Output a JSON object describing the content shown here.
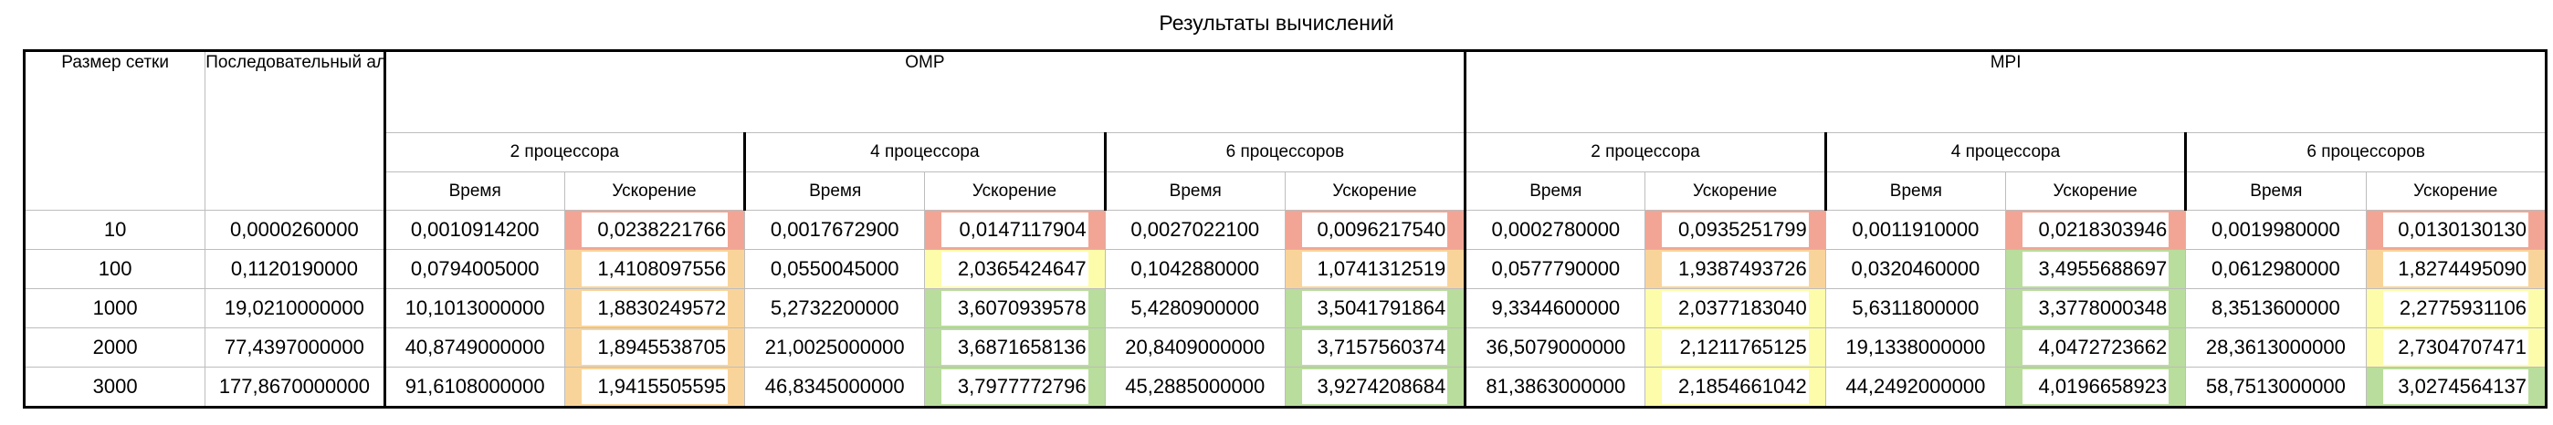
{
  "title": "Результаты вычислений",
  "headers": {
    "grid_size": "Размер сетки",
    "sequential": "Последовательный алгоритм (время, сек)",
    "omp": "OMP",
    "mpi": "MPI",
    "p2": "2 процессора",
    "p4": "4 процессора",
    "p6": "6 процессоров",
    "time": "Время",
    "speedup": "Ускорение"
  },
  "colors": {
    "red": "#f2a594",
    "orange": "#f9d49a",
    "yellow": "#fdfcaa",
    "green": "#b9dd9c"
  },
  "rows": [
    {
      "size": "10",
      "seq": "0,0000260000",
      "omp": [
        {
          "time": "0,0010914200",
          "speedup": "0,0238221766",
          "color": "red"
        },
        {
          "time": "0,0017672900",
          "speedup": "0,0147117904",
          "color": "red"
        },
        {
          "time": "0,0027022100",
          "speedup": "0,0096217540",
          "color": "red"
        }
      ],
      "mpi": [
        {
          "time": "0,0002780000",
          "speedup": "0,0935251799",
          "color": "red"
        },
        {
          "time": "0,0011910000",
          "speedup": "0,0218303946",
          "color": "red"
        },
        {
          "time": "0,0019980000",
          "speedup": "0,0130130130",
          "color": "red"
        }
      ]
    },
    {
      "size": "100",
      "seq": "0,1120190000",
      "omp": [
        {
          "time": "0,0794005000",
          "speedup": "1,4108097556",
          "color": "orange"
        },
        {
          "time": "0,0550045000",
          "speedup": "2,0365424647",
          "color": "yellow"
        },
        {
          "time": "0,1042880000",
          "speedup": "1,0741312519",
          "color": "orange"
        }
      ],
      "mpi": [
        {
          "time": "0,0577790000",
          "speedup": "1,9387493726",
          "color": "orange"
        },
        {
          "time": "0,0320460000",
          "speedup": "3,4955688697",
          "color": "green"
        },
        {
          "time": "0,0612980000",
          "speedup": "1,8274495090",
          "color": "orange"
        }
      ]
    },
    {
      "size": "1000",
      "seq": "19,0210000000",
      "omp": [
        {
          "time": "10,1013000000",
          "speedup": "1,8830249572",
          "color": "orange"
        },
        {
          "time": "5,2732200000",
          "speedup": "3,6070939578",
          "color": "green"
        },
        {
          "time": "5,4280900000",
          "speedup": "3,5041791864",
          "color": "green"
        }
      ],
      "mpi": [
        {
          "time": "9,3344600000",
          "speedup": "2,0377183040",
          "color": "yellow"
        },
        {
          "time": "5,6311800000",
          "speedup": "3,3778000348",
          "color": "green"
        },
        {
          "time": "8,3513600000",
          "speedup": "2,2775931106",
          "color": "yellow"
        }
      ]
    },
    {
      "size": "2000",
      "seq": "77,4397000000",
      "omp": [
        {
          "time": "40,8749000000",
          "speedup": "1,8945538705",
          "color": "orange"
        },
        {
          "time": "21,0025000000",
          "speedup": "3,6871658136",
          "color": "green"
        },
        {
          "time": "20,8409000000",
          "speedup": "3,7157560374",
          "color": "green"
        }
      ],
      "mpi": [
        {
          "time": "36,5079000000",
          "speedup": "2,1211765125",
          "color": "yellow"
        },
        {
          "time": "19,1338000000",
          "speedup": "4,0472723662",
          "color": "green"
        },
        {
          "time": "28,3613000000",
          "speedup": "2,7304707471",
          "color": "yellow"
        }
      ]
    },
    {
      "size": "3000",
      "seq": "177,8670000000",
      "omp": [
        {
          "time": "91,6108000000",
          "speedup": "1,9415505595",
          "color": "orange"
        },
        {
          "time": "46,8345000000",
          "speedup": "3,7977772796",
          "color": "green"
        },
        {
          "time": "45,2885000000",
          "speedup": "3,9274208684",
          "color": "green"
        }
      ],
      "mpi": [
        {
          "time": "81,3863000000",
          "speedup": "2,1854661042",
          "color": "yellow"
        },
        {
          "time": "44,2492000000",
          "speedup": "4,0196658923",
          "color": "green"
        },
        {
          "time": "58,7513000000",
          "speedup": "3,0274564137",
          "color": "green"
        }
      ]
    }
  ]
}
